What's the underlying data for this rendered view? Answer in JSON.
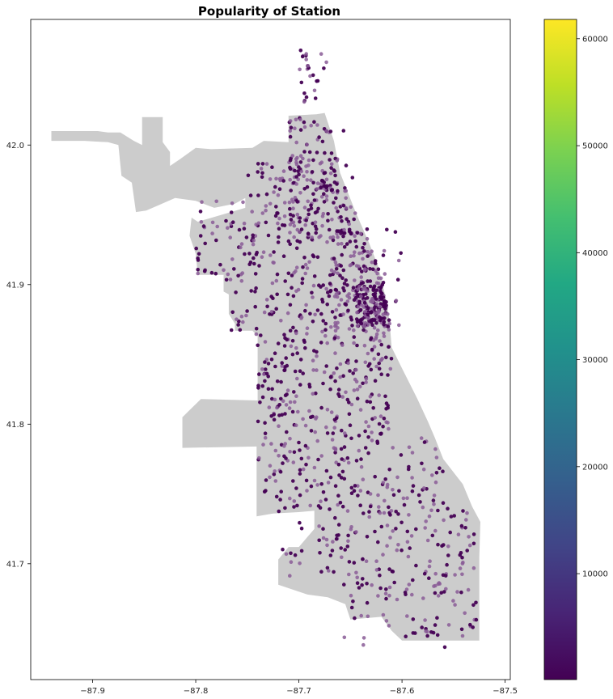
{
  "chart_data": {
    "type": "scatter",
    "title": "Popularity of Station",
    "xlabel": "",
    "ylabel": "",
    "xlim": [
      -87.96,
      -87.495
    ],
    "ylim": [
      41.617,
      42.09
    ],
    "x_ticks": [
      -87.9,
      -87.8,
      -87.7,
      -87.6,
      -87.5
    ],
    "x_tick_labels": [
      "−87.9",
      "−87.8",
      "−87.7",
      "−87.6",
      "−87.5"
    ],
    "y_ticks": [
      41.7,
      41.8,
      41.9,
      42.0
    ],
    "y_tick_labels": [
      "41.7",
      "41.8",
      "41.9",
      "42.0"
    ],
    "colorbar": {
      "colormap": "viridis",
      "range": [
        100,
        61800
      ],
      "ticks": [
        10000,
        20000,
        30000,
        40000,
        50000,
        60000
      ],
      "tick_labels": [
        "10000",
        "20000",
        "30000",
        "40000",
        "50000",
        "60000"
      ]
    },
    "base_map": {
      "fill_color": "#cccccc",
      "polygon": [
        [
          -87.94,
          42.003
        ],
        [
          -87.908,
          42.003
        ],
        [
          -87.885,
          42.002
        ],
        [
          -87.875,
          42.0
        ],
        [
          -87.872,
          41.978
        ],
        [
          -87.862,
          41.973
        ],
        [
          -87.858,
          41.952
        ],
        [
          -87.848,
          41.953
        ],
        [
          -87.82,
          41.962
        ],
        [
          -87.8,
          41.96
        ],
        [
          -87.782,
          41.955
        ],
        [
          -87.762,
          41.958
        ],
        [
          -87.752,
          41.962
        ],
        [
          -87.752,
          41.955
        ],
        [
          -87.798,
          41.945
        ],
        [
          -87.804,
          41.948
        ],
        [
          -87.806,
          41.935
        ],
        [
          -87.8,
          41.922
        ],
        [
          -87.798,
          41.907
        ],
        [
          -87.773,
          41.907
        ],
        [
          -87.773,
          41.895
        ],
        [
          -87.768,
          41.893
        ],
        [
          -87.768,
          41.879
        ],
        [
          -87.762,
          41.872
        ],
        [
          -87.762,
          41.867
        ],
        [
          -87.745,
          41.867
        ],
        [
          -87.74,
          41.863
        ],
        [
          -87.74,
          41.817
        ],
        [
          -87.795,
          41.818
        ],
        [
          -87.813,
          41.805
        ],
        [
          -87.813,
          41.783
        ],
        [
          -87.741,
          41.784
        ],
        [
          -87.741,
          41.734
        ],
        [
          -87.725,
          41.736
        ],
        [
          -87.7,
          41.737
        ],
        [
          -87.685,
          41.738
        ],
        [
          -87.685,
          41.725
        ],
        [
          -87.7,
          41.712
        ],
        [
          -87.71,
          41.712
        ],
        [
          -87.72,
          41.703
        ],
        [
          -87.72,
          41.685
        ],
        [
          -87.692,
          41.678
        ],
        [
          -87.672,
          41.676
        ],
        [
          -87.655,
          41.671
        ],
        [
          -87.65,
          41.66
        ],
        [
          -87.62,
          41.662
        ],
        [
          -87.61,
          41.652
        ],
        [
          -87.6,
          41.645
        ],
        [
          -87.525,
          41.645
        ],
        [
          -87.525,
          41.705
        ],
        [
          -87.524,
          41.73
        ],
        [
          -87.532,
          41.741
        ],
        [
          -87.541,
          41.757
        ],
        [
          -87.56,
          41.775
        ],
        [
          -87.568,
          41.79
        ],
        [
          -87.575,
          41.802
        ],
        [
          -87.585,
          41.818
        ],
        [
          -87.6,
          41.84
        ],
        [
          -87.61,
          41.855
        ],
        [
          -87.612,
          41.873
        ],
        [
          -87.615,
          41.888
        ],
        [
          -87.623,
          41.913
        ],
        [
          -87.632,
          41.93
        ],
        [
          -87.645,
          41.952
        ],
        [
          -87.66,
          41.98
        ],
        [
          -87.666,
          42.003
        ],
        [
          -87.675,
          42.023
        ],
        [
          -87.683,
          42.022
        ],
        [
          -87.71,
          42.021
        ],
        [
          -87.71,
          42.002
        ],
        [
          -87.734,
          42.003
        ],
        [
          -87.745,
          41.998
        ],
        [
          -87.785,
          41.997
        ],
        [
          -87.8,
          41.998
        ],
        [
          -87.815,
          41.99
        ],
        [
          -87.825,
          41.985
        ],
        [
          -87.825,
          41.995
        ],
        [
          -87.832,
          42.002
        ],
        [
          -87.832,
          42.02
        ],
        [
          -87.84,
          42.02
        ],
        [
          -87.852,
          42.02
        ],
        [
          -87.852,
          42.0
        ],
        [
          -87.86,
          42.003
        ],
        [
          -87.873,
          42.009
        ],
        [
          -87.885,
          42.009
        ],
        [
          -87.895,
          42.01
        ],
        [
          -87.91,
          42.01
        ],
        [
          -87.928,
          42.01
        ],
        [
          -87.94,
          42.01
        ]
      ]
    },
    "series": [
      {
        "name": "stations",
        "color_value_range_visible": "low (dark purple)",
        "clusters": [
          {
            "lon_range": [
              -87.75,
              -87.64
            ],
            "lat_range": [
              41.96,
              41.99
            ],
            "count": 60
          },
          {
            "lon_range": [
              -87.71,
              -87.64
            ],
            "lat_range": [
              41.93,
              42.02
            ],
            "count": 160
          },
          {
            "lon_range": [
              -87.7,
              -87.67
            ],
            "lat_range": [
              42.03,
              42.07
            ],
            "count": 25
          },
          {
            "lon_range": [
              -87.8,
              -87.68
            ],
            "lat_range": [
              41.9,
              41.96
            ],
            "count": 140
          },
          {
            "lon_range": [
              -87.77,
              -87.66
            ],
            "lat_range": [
              41.86,
              41.9
            ],
            "count": 80
          },
          {
            "lon_range": [
              -87.67,
              -87.6
            ],
            "lat_range": [
              41.86,
              41.94
            ],
            "count": 220
          },
          {
            "lon_range": [
              -87.645,
              -87.615
            ],
            "lat_range": [
              41.87,
              41.9
            ],
            "count": 120
          },
          {
            "lon_range": [
              -87.74,
              -87.61
            ],
            "lat_range": [
              41.79,
              41.86
            ],
            "count": 220
          },
          {
            "lon_range": [
              -87.74,
              -87.56
            ],
            "lat_range": [
              41.74,
              41.79
            ],
            "count": 160
          },
          {
            "lon_range": [
              -87.72,
              -87.53
            ],
            "lat_range": [
              41.69,
              41.74
            ],
            "count": 140
          },
          {
            "lon_range": [
              -87.66,
              -87.52
            ],
            "lat_range": [
              41.64,
              41.69
            ],
            "count": 80
          }
        ]
      }
    ]
  }
}
